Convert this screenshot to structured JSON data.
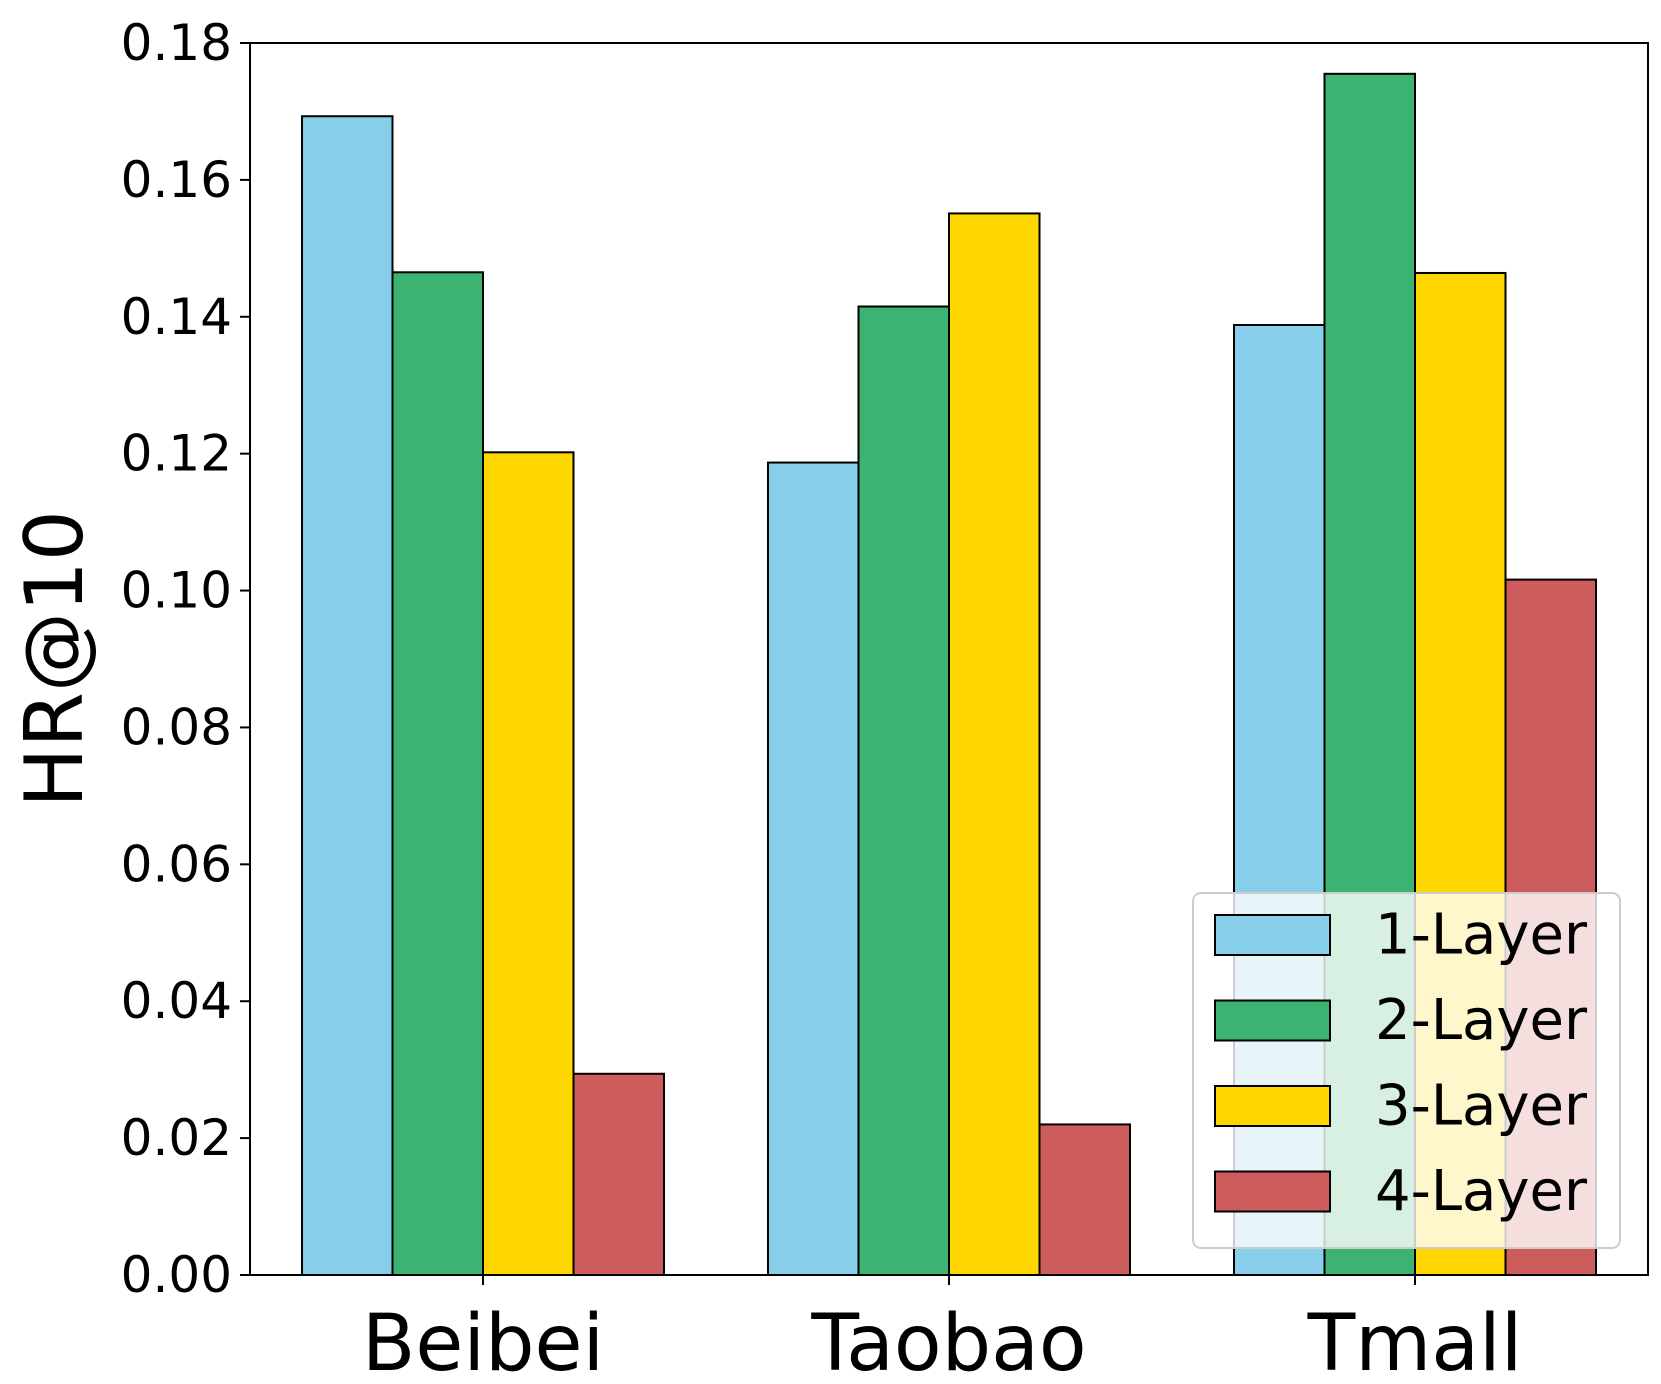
{
  "chart_data": {
    "type": "bar",
    "title": "",
    "xlabel": "",
    "ylabel": "HR@10",
    "categories": [
      "Beibei",
      "Taobao",
      "Tmall"
    ],
    "series": [
      {
        "name": "1-Layer",
        "color": "#87CEEB",
        "values": [
          0.1693,
          0.1187,
          0.1388
        ]
      },
      {
        "name": "2-Layer",
        "color": "#3CB371",
        "values": [
          0.1465,
          0.1415,
          0.1755
        ]
      },
      {
        "name": "3-Layer",
        "color": "#FFD700",
        "values": [
          0.1202,
          0.1551,
          0.1464
        ]
      },
      {
        "name": "4-Layer",
        "color": "#CD5C5C",
        "values": [
          0.0294,
          0.022,
          0.1016
        ]
      }
    ],
    "ylim": [
      0,
      0.18
    ],
    "yticks": [
      "0.00",
      "0.02",
      "0.04",
      "0.06",
      "0.08",
      "0.10",
      "0.12",
      "0.14",
      "0.16",
      "0.18"
    ],
    "grid": false,
    "legend_position": "lower-right"
  }
}
